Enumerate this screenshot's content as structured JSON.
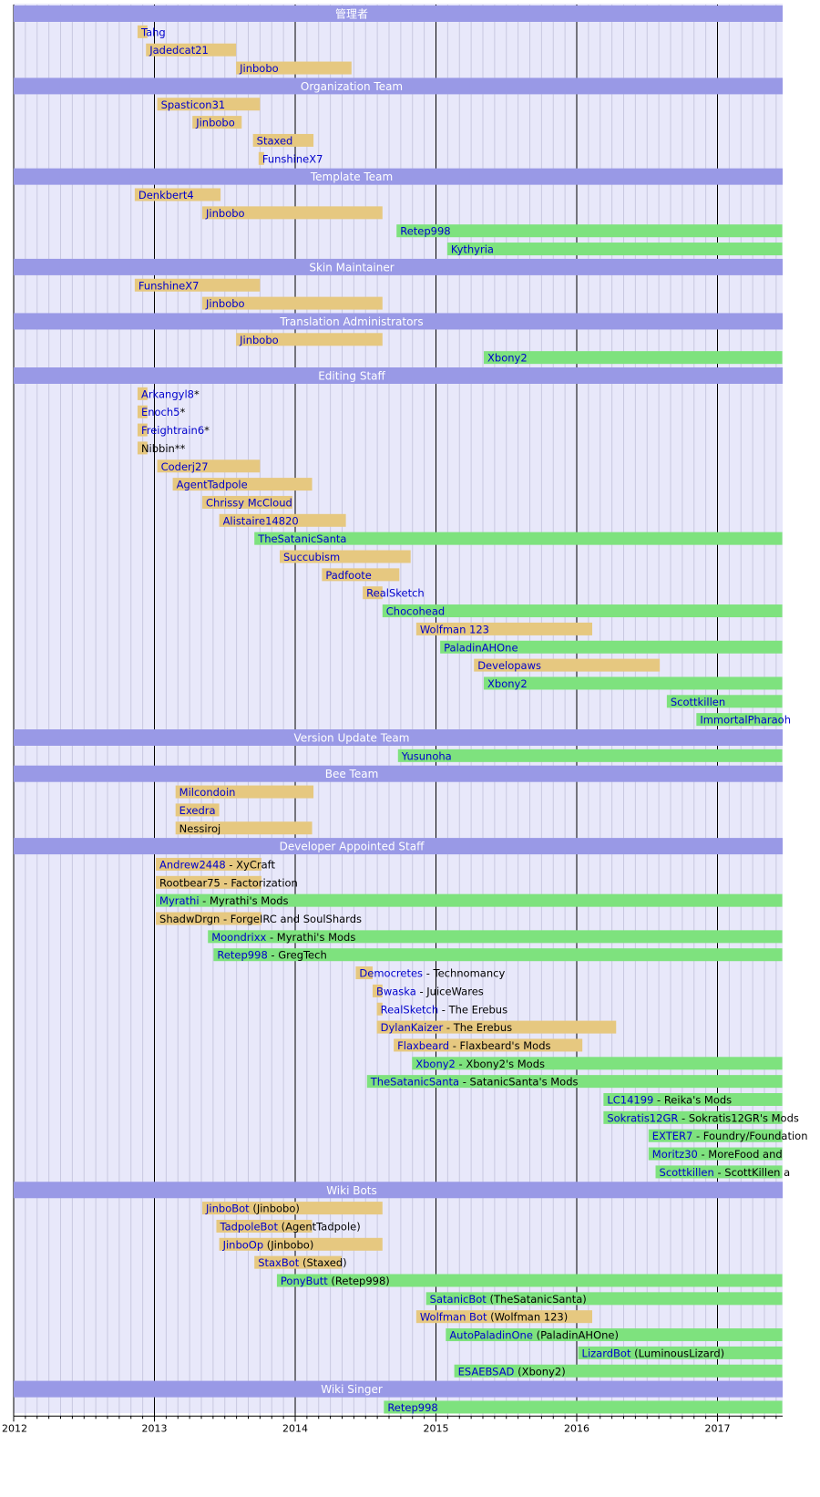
{
  "colors": {
    "background": "#e8e8fa",
    "section": "#9999e6",
    "former": "#e6c880",
    "current": "#7ee27e",
    "link": "#0000cc",
    "text": "#000000"
  },
  "chart_data": {
    "type": "timeline",
    "title": "",
    "xlabel": "",
    "ylabel": "",
    "xlim": [
      2012,
      2017.46
    ],
    "years": [
      2012,
      2013,
      2014,
      2015,
      2016,
      2017
    ],
    "rows": [
      {
        "kind": "section",
        "label": "管理者"
      },
      {
        "kind": "bar",
        "link": "Tahg",
        "rest": "",
        "start": 2012.88,
        "end": 2012.95,
        "current": false
      },
      {
        "kind": "bar",
        "link": "Jadedcat21",
        "rest": "",
        "start": 2012.94,
        "end": 2013.58,
        "current": false
      },
      {
        "kind": "bar",
        "link": "Jinbobo",
        "rest": "",
        "start": 2013.58,
        "end": 2014.4,
        "current": false
      },
      {
        "kind": "section",
        "label": "Organization Team"
      },
      {
        "kind": "bar",
        "link": "Spasticon31",
        "rest": "",
        "start": 2013.02,
        "end": 2013.75,
        "current": false
      },
      {
        "kind": "bar",
        "link": "Jinbobo",
        "rest": "",
        "start": 2013.27,
        "end": 2013.62,
        "current": false
      },
      {
        "kind": "bar",
        "link": "Staxed",
        "rest": "",
        "start": 2013.7,
        "end": 2014.13,
        "current": false
      },
      {
        "kind": "bar",
        "link": "FunshineX7",
        "rest": "",
        "start": 2013.74,
        "end": 2013.76,
        "current": false
      },
      {
        "kind": "section",
        "label": "Template Team"
      },
      {
        "kind": "bar",
        "link": "Denkbert4",
        "rest": "",
        "start": 2012.86,
        "end": 2013.47,
        "current": false
      },
      {
        "kind": "bar",
        "link": "Jinbobo",
        "rest": "",
        "start": 2013.34,
        "end": 2014.62,
        "current": false
      },
      {
        "kind": "bar",
        "link": "Retep998",
        "rest": "",
        "start": 2014.72,
        "end": 2017.46,
        "current": true
      },
      {
        "kind": "bar",
        "link": "Kythyria",
        "rest": "",
        "start": 2015.08,
        "end": 2017.46,
        "current": true
      },
      {
        "kind": "section",
        "label": "Skin Maintainer"
      },
      {
        "kind": "bar",
        "link": "FunshineX7",
        "rest": "",
        "start": 2012.86,
        "end": 2013.75,
        "current": false
      },
      {
        "kind": "bar",
        "link": "Jinbobo",
        "rest": "",
        "start": 2013.34,
        "end": 2014.62,
        "current": false
      },
      {
        "kind": "section",
        "label": "Translation Administrators"
      },
      {
        "kind": "bar",
        "link": "Jinbobo",
        "rest": "",
        "start": 2013.58,
        "end": 2014.62,
        "current": false
      },
      {
        "kind": "bar",
        "link": "Xbony2",
        "rest": "",
        "start": 2015.34,
        "end": 2017.46,
        "current": true
      },
      {
        "kind": "section",
        "label": "Editing Staff"
      },
      {
        "kind": "bar",
        "link": "Arkangyl8",
        "rest": "*",
        "start": 2012.88,
        "end": 2012.95,
        "current": false
      },
      {
        "kind": "bar",
        "link": "Enoch5",
        "rest": "*",
        "start": 2012.88,
        "end": 2012.95,
        "current": false
      },
      {
        "kind": "bar",
        "link": "Freightrain6",
        "rest": "*",
        "start": 2012.88,
        "end": 2012.95,
        "current": false
      },
      {
        "kind": "bar",
        "link": "",
        "rest": "Nibbin**",
        "start": 2012.88,
        "end": 2012.95,
        "current": false
      },
      {
        "kind": "bar",
        "link": "Coderj27",
        "rest": "",
        "start": 2013.02,
        "end": 2013.75,
        "current": false
      },
      {
        "kind": "bar",
        "link": "AgentTadpole",
        "rest": "",
        "start": 2013.13,
        "end": 2014.12,
        "current": false
      },
      {
        "kind": "bar",
        "link": "Chrissy McCloud",
        "rest": "",
        "start": 2013.34,
        "end": 2013.98,
        "current": false
      },
      {
        "kind": "bar",
        "link": "Alistaire14820",
        "rest": "",
        "start": 2013.46,
        "end": 2014.36,
        "current": false
      },
      {
        "kind": "bar",
        "link": "TheSatanicSanta",
        "rest": "",
        "start": 2013.71,
        "end": 2017.46,
        "current": true
      },
      {
        "kind": "bar",
        "link": "Succubism",
        "rest": "",
        "start": 2013.89,
        "end": 2014.82,
        "current": false
      },
      {
        "kind": "bar",
        "link": "Padfoote",
        "rest": "",
        "start": 2014.19,
        "end": 2014.74,
        "current": false
      },
      {
        "kind": "bar",
        "link": "RealSketch",
        "rest": "",
        "start": 2014.48,
        "end": 2014.62,
        "current": false
      },
      {
        "kind": "bar",
        "link": "Chocohead",
        "rest": "",
        "start": 2014.62,
        "end": 2017.46,
        "current": true
      },
      {
        "kind": "bar",
        "link": "Wolfman 123",
        "rest": "",
        "start": 2014.86,
        "end": 2016.11,
        "current": false
      },
      {
        "kind": "bar",
        "link": "PaladinAHOne",
        "rest": "",
        "start": 2015.03,
        "end": 2017.46,
        "current": true
      },
      {
        "kind": "bar",
        "link": "Developaws",
        "rest": "",
        "start": 2015.27,
        "end": 2016.59,
        "current": false
      },
      {
        "kind": "bar",
        "link": "Xbony2",
        "rest": "",
        "start": 2015.34,
        "end": 2017.46,
        "current": true
      },
      {
        "kind": "bar",
        "link": "Scottkillen",
        "rest": "",
        "start": 2016.64,
        "end": 2017.46,
        "current": true
      },
      {
        "kind": "bar",
        "link": "ImmortalPharaoh",
        "rest": "",
        "start": 2016.85,
        "end": 2017.46,
        "current": true
      },
      {
        "kind": "section",
        "label": "Version Update Team"
      },
      {
        "kind": "bar",
        "link": "Yusunoha",
        "rest": "",
        "start": 2014.73,
        "end": 2017.46,
        "current": true
      },
      {
        "kind": "section",
        "label": "Bee Team"
      },
      {
        "kind": "bar",
        "link": "Milcondoin",
        "rest": "",
        "start": 2013.15,
        "end": 2014.13,
        "current": false
      },
      {
        "kind": "bar",
        "link": "Exedra",
        "rest": "",
        "start": 2013.15,
        "end": 2013.46,
        "current": false
      },
      {
        "kind": "bar",
        "link": "",
        "rest": "Nessiroj",
        "start": 2013.15,
        "end": 2014.12,
        "current": false
      },
      {
        "kind": "section",
        "label": "Developer Appointed Staff"
      },
      {
        "kind": "bar",
        "link": "Andrew2448",
        "rest": " - XyCraft",
        "start": 2013.01,
        "end": 2013.76,
        "current": false
      },
      {
        "kind": "bar",
        "link": "",
        "rest": "Rootbear75 - Factorization",
        "start": 2013.01,
        "end": 2013.76,
        "current": false
      },
      {
        "kind": "bar",
        "link": "Myrathi",
        "rest": " - Myrathi's Mods",
        "start": 2013.01,
        "end": 2017.46,
        "current": true
      },
      {
        "kind": "bar",
        "link": "",
        "rest": "ShadwDrgn - ForgeIRC and SoulShards",
        "start": 2013.01,
        "end": 2013.76,
        "current": false
      },
      {
        "kind": "bar",
        "link": "Moondrixx",
        "rest": " - Myrathi's Mods",
        "start": 2013.38,
        "end": 2017.46,
        "current": true
      },
      {
        "kind": "bar",
        "link": "Retep998",
        "rest": " - GregTech",
        "start": 2013.42,
        "end": 2017.46,
        "current": true
      },
      {
        "kind": "bar",
        "link": "Democretes",
        "rest": " - Technomancy",
        "start": 2014.43,
        "end": 2014.55,
        "current": false
      },
      {
        "kind": "bar",
        "link": "Bwaska",
        "rest": " - JuiceWares",
        "start": 2014.55,
        "end": 2014.62,
        "current": false
      },
      {
        "kind": "bar",
        "link": "RealSketch",
        "rest": " - The Erebus",
        "start": 2014.58,
        "end": 2014.62,
        "current": false
      },
      {
        "kind": "bar",
        "link": "DylanKaizer",
        "rest": " - The Erebus",
        "start": 2014.58,
        "end": 2016.28,
        "current": false
      },
      {
        "kind": "bar",
        "link": "Flaxbeard",
        "rest": " - Flaxbeard's Mods",
        "start": 2014.7,
        "end": 2016.04,
        "current": false
      },
      {
        "kind": "bar",
        "link": "Xbony2",
        "rest": " - Xbony2's Mods",
        "start": 2014.83,
        "end": 2017.46,
        "current": true
      },
      {
        "kind": "bar",
        "link": "TheSatanicSanta",
        "rest": " - SatanicSanta's Mods",
        "start": 2014.51,
        "end": 2017.46,
        "current": true
      },
      {
        "kind": "bar",
        "link": "LC14199",
        "rest": " - Reika's Mods",
        "start": 2016.19,
        "end": 2017.46,
        "current": true
      },
      {
        "kind": "bar",
        "link": "Sokratis12GR",
        "rest": " - Sokratis12GR's Mods",
        "start": 2016.19,
        "end": 2017.46,
        "current": true
      },
      {
        "kind": "bar",
        "link": "EXTER7",
        "rest": " - Foundry/Foundation",
        "start": 2016.51,
        "end": 2017.46,
        "current": true
      },
      {
        "kind": "bar",
        "link": "Moritz30",
        "rest": " - MoreFood and",
        "start": 2016.51,
        "end": 2017.46,
        "current": true
      },
      {
        "kind": "bar",
        "link": "Scottkillen",
        "rest": " - ScottKillen a",
        "start": 2016.56,
        "end": 2017.46,
        "current": true
      },
      {
        "kind": "section",
        "label": "Wiki Bots"
      },
      {
        "kind": "bar",
        "link": "JinboBot",
        "rest": " (Jinbobo)",
        "start": 2013.34,
        "end": 2014.62,
        "current": false
      },
      {
        "kind": "bar",
        "link": "TadpoleBot",
        "rest": " (AgentTadpole)",
        "start": 2013.44,
        "end": 2014.12,
        "current": false
      },
      {
        "kind": "bar",
        "link": "JinboOp",
        "rest": " (Jinbobo)",
        "start": 2013.46,
        "end": 2014.62,
        "current": false
      },
      {
        "kind": "bar",
        "link": "StaxBot",
        "rest": " (Staxed)",
        "start": 2013.71,
        "end": 2014.33,
        "current": false
      },
      {
        "kind": "bar",
        "link": "PonyButt",
        "rest": " (Retep998)",
        "start": 2013.87,
        "end": 2017.46,
        "current": true
      },
      {
        "kind": "bar",
        "link": "SatanicBot",
        "rest": " (TheSatanicSanta)",
        "start": 2014.93,
        "end": 2017.46,
        "current": true
      },
      {
        "kind": "bar",
        "link": "Wolfman Bot",
        "rest": " (Wolfman 123)",
        "start": 2014.86,
        "end": 2016.11,
        "current": false
      },
      {
        "kind": "bar",
        "link": "AutoPaladinOne",
        "rest": " (PaladinAHOne)",
        "start": 2015.07,
        "end": 2017.46,
        "current": true
      },
      {
        "kind": "bar",
        "link": "LizardBot",
        "rest": " (LuminousLizard)",
        "start": 2016.01,
        "end": 2017.46,
        "current": true
      },
      {
        "kind": "bar",
        "link": "ESAEBSAD",
        "rest": " (Xbony2)",
        "start": 2015.13,
        "end": 2017.46,
        "current": true
      },
      {
        "kind": "section",
        "label": "Wiki Singer"
      },
      {
        "kind": "bar",
        "link": "Retep998",
        "rest": "",
        "start": 2014.63,
        "end": 2017.46,
        "current": true
      }
    ]
  }
}
